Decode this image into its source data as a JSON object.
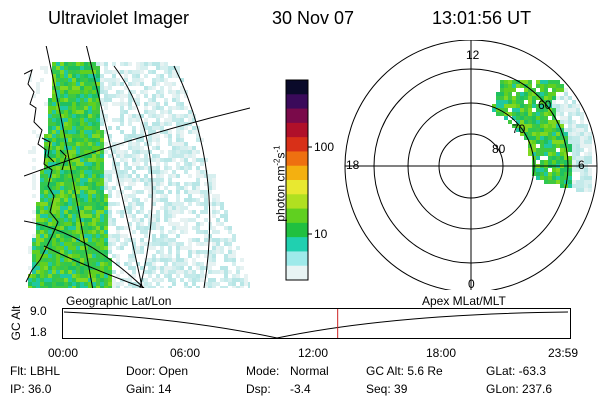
{
  "header": {
    "instrument": "Ultraviolet Imager",
    "date": "30 Nov 07",
    "time": "13:01:56 UT"
  },
  "colorbar": {
    "label": "photon cm-2s-1",
    "label_parts": [
      "photon cm",
      "-2",
      "s",
      "-1"
    ],
    "ticks": [
      "100",
      "10"
    ],
    "colors": [
      "#0a0a2a",
      "#3a0a5a",
      "#7a0a4a",
      "#b0102a",
      "#d83018",
      "#ee7010",
      "#f4b010",
      "#e8e830",
      "#b0e020",
      "#60d020",
      "#20c040",
      "#20d0b0",
      "#9eeaea",
      "#e8f4f4"
    ]
  },
  "geo_panel": {
    "label": "Geographic Lat/Lon"
  },
  "polar_panel": {
    "label": "Apex MLat/MLT",
    "mlt_labels": [
      "12",
      "18",
      "6",
      "0"
    ],
    "lat_labels": [
      "60",
      "70",
      "80"
    ]
  },
  "orbit_plot": {
    "ylabel": "GC Alt",
    "yticks": [
      "9.0",
      "1.8"
    ],
    "xticks": [
      "00:00",
      "06:00",
      "12:00",
      "18:00",
      "23:59"
    ],
    "current_time_marker": "13:01:56",
    "marker_color": "#cc2222"
  },
  "info": {
    "flt": "Flt: LBHL",
    "ip": "IP: 36.0",
    "door": "Door: Open",
    "gain": "Gain: 14",
    "mode_label": "Mode:",
    "mode_value": "Normal",
    "dsp_label": "Dsp:",
    "dsp_value": "-3.4",
    "gc_alt": "GC Alt: 5.6 Re",
    "seq": "Seq: 39",
    "glat": "GLat: -63.3",
    "glon": "GLon: 237.6"
  }
}
